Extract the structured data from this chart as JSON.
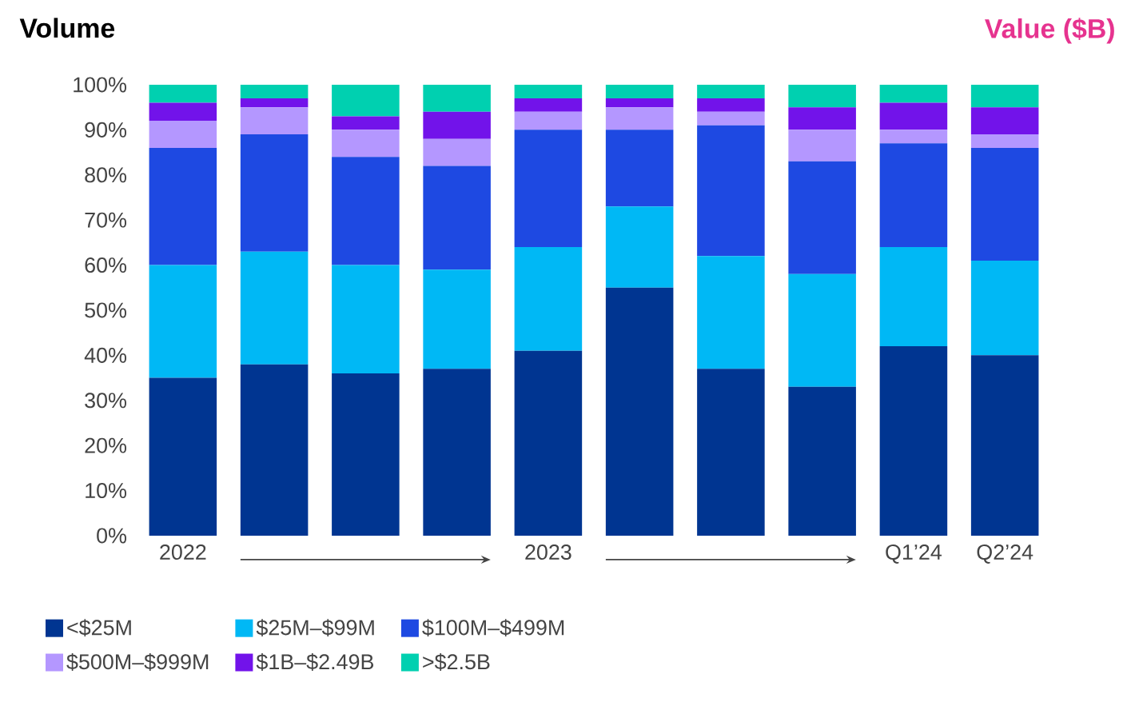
{
  "chart_data": {
    "type": "bar",
    "stacked": true,
    "title": "Volume",
    "annotations": [
      "Value ($B)"
    ],
    "categories": [
      "2022",
      null,
      null,
      null,
      "2023",
      null,
      null,
      null,
      "Q1’24",
      "Q2’24"
    ],
    "ylim": [
      0,
      100
    ],
    "yticks": [
      {
        "value": 0,
        "label": "0%"
      },
      {
        "value": 10,
        "label": "10%"
      },
      {
        "value": 20,
        "label": "20%"
      },
      {
        "value": 30,
        "label": "30%"
      },
      {
        "value": 40,
        "label": "40%"
      },
      {
        "value": 50,
        "label": "50%"
      },
      {
        "value": 60,
        "label": "60%"
      },
      {
        "value": 70,
        "label": "70%"
      },
      {
        "value": 80,
        "label": "80%"
      },
      {
        "value": 90,
        "label": "90%"
      },
      {
        "value": 100,
        "label": "100%"
      }
    ],
    "grid": false,
    "legend": "bottom",
    "series": [
      {
        "name": "<$25M",
        "color": "#003591",
        "values": [
          35,
          38,
          36,
          37,
          41,
          55,
          37,
          33,
          42,
          40
        ]
      },
      {
        "name": "$25M–$99M",
        "color": "#00b8f5",
        "values": [
          25,
          25,
          24,
          22,
          23,
          18,
          25,
          25,
          22,
          21
        ]
      },
      {
        "name": "$100M–$499M",
        "color": "#1e49e2",
        "values": [
          26,
          26,
          24,
          23,
          26,
          17,
          29,
          25,
          23,
          25
        ]
      },
      {
        "name": "$500M–$999M",
        "color": "#b497ff",
        "values": [
          6,
          6,
          6,
          6,
          4,
          5,
          3,
          7,
          3,
          3
        ]
      },
      {
        "name": "$1B–$2.49B",
        "color": "#7213ea",
        "values": [
          4,
          2,
          3,
          6,
          3,
          2,
          3,
          5,
          6,
          6
        ]
      },
      {
        "name": ">$2.5B",
        "color": "#00d0b0",
        "values": [
          4,
          3,
          7,
          6,
          3,
          3,
          3,
          5,
          4,
          5
        ]
      }
    ]
  }
}
